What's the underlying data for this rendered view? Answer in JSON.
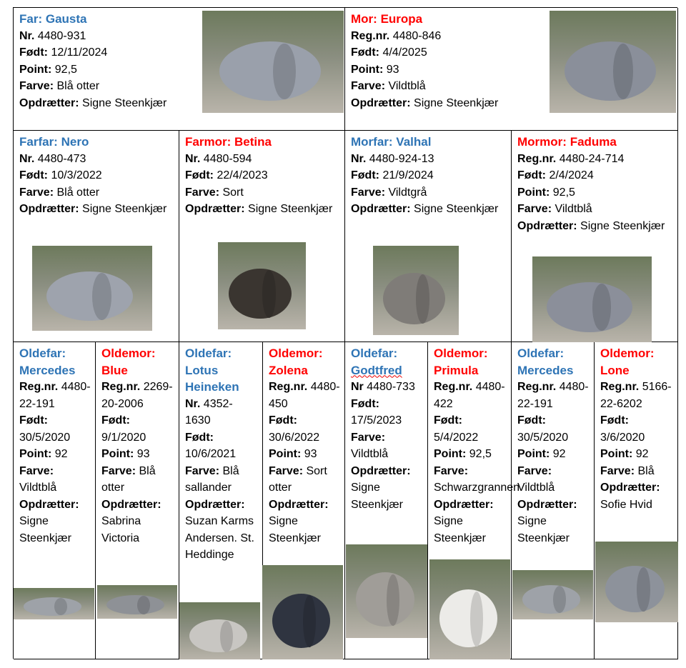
{
  "sire": {
    "role": "Far:",
    "name": "Gausta",
    "color": "#2e74b5",
    "fields": [
      {
        "label": "Nr.",
        "value": "4480-931"
      },
      {
        "label": "Født:",
        "value": "12/11/2024"
      },
      {
        "label": "Point:",
        "value": "92,5"
      },
      {
        "label": "Farve:",
        "value": "Blå otter"
      },
      {
        "label": "Opdrætter:",
        "value": "Signe Steenkjær"
      }
    ]
  },
  "dam": {
    "role": "Mor:",
    "name": "Europa",
    "color": "#ff0000",
    "fields": [
      {
        "label": "Reg.nr.",
        "value": "4480-846"
      },
      {
        "label": "Født:",
        "value": "4/4/2025"
      },
      {
        "label": "Point:",
        "value": "93"
      },
      {
        "label": "Farve:",
        "value": "Vildtblå"
      },
      {
        "label": "Opdrætter:",
        "value": "Signe Steenkjær"
      }
    ]
  },
  "grandparents": [
    {
      "role": "Farfar:",
      "name": "Nero",
      "color": "#2e74b5",
      "fields": [
        {
          "label": "Nr.",
          "value": "4480-473"
        },
        {
          "label": "Født:",
          "value": "10/3/2022"
        },
        {
          "label": "Farve:",
          "value": "Blå otter"
        },
        {
          "label": "Opdrætter:",
          "value": "Signe Steenkjær"
        }
      ]
    },
    {
      "role": "Farmor:",
      "name": "Betina",
      "color": "#ff0000",
      "fields": [
        {
          "label": "Nr.",
          "value": "4480-594"
        },
        {
          "label": "Født:",
          "value": "22/4/2023"
        },
        {
          "label": "Farve:",
          "value": "Sort"
        },
        {
          "label": "Opdrætter:",
          "value": "Signe Steenkjær"
        }
      ]
    },
    {
      "role": "Morfar:",
      "name": "Valhal",
      "color": "#2e74b5",
      "fields": [
        {
          "label": "Nr.",
          "value": "4480-924-13"
        },
        {
          "label": "Født:",
          "value": "21/9/2024"
        },
        {
          "label": "Farve:",
          "value": "Vildtgrå"
        },
        {
          "label": "Opdrætter:",
          "value": "Signe Steenkjær"
        }
      ]
    },
    {
      "role": "Mormor:",
      "name": "Faduma",
      "color": "#ff0000",
      "fields": [
        {
          "label": "Reg.nr.",
          "value": "4480-24-714"
        },
        {
          "label": "Født:",
          "value": "2/4/2024"
        },
        {
          "label": "Point:",
          "value": "92,5"
        },
        {
          "label": "Farve:",
          "value": "Vildtblå"
        },
        {
          "label": "Opdrætter:",
          "value": "Signe Steenkjær"
        }
      ]
    }
  ],
  "great_grandparents": [
    {
      "role": "Oldefar:",
      "name": "Mercedes",
      "color": "#2e74b5",
      "fields": [
        {
          "label": "Reg.nr.",
          "value": "4480-22-191"
        },
        {
          "label": "Født:",
          "value": "30/5/2020"
        },
        {
          "label": "Point:",
          "value": "92"
        },
        {
          "label": "Farve:",
          "value": "Vildtblå"
        },
        {
          "label": "Opdrætter:",
          "value": "Signe Steenkjær"
        }
      ]
    },
    {
      "role": "Oldemor:",
      "name": "Blue",
      "color": "#ff0000",
      "fields": [
        {
          "label": "Reg.nr.",
          "value": "2269-20-2006"
        },
        {
          "label": "Født:",
          "value": "9/1/2020"
        },
        {
          "label": "Point:",
          "value": "93"
        },
        {
          "label": "Farve:",
          "value": "Blå otter"
        },
        {
          "label": "Opdrætter:",
          "value": "Sabrina Victoria"
        }
      ]
    },
    {
      "role": "Oldefar:",
      "name": "Lotus Heineken",
      "color": "#2e74b5",
      "fields": [
        {
          "label": "Nr.",
          "value": "4352-1630"
        },
        {
          "label": "Født:",
          "value": "10/6/2021"
        },
        {
          "label": "Farve:",
          "value": "Blå sallander"
        },
        {
          "label": "Opdrætter:",
          "value": "Suzan Karms Andersen. St. Heddinge"
        }
      ]
    },
    {
      "role": "Oldemor:",
      "name": "Zolena",
      "color": "#ff0000",
      "fields": [
        {
          "label": "Reg.nr.",
          "value": "4480-450"
        },
        {
          "label": "Født:",
          "value": "30/6/2022"
        },
        {
          "label": "Point:",
          "value": "93"
        },
        {
          "label": "Farve:",
          "value": "Sort otter"
        },
        {
          "label": "Opdrætter:",
          "value": "Signe Steenkjær"
        }
      ]
    },
    {
      "role": "Oldefar:",
      "name": "Godtfred",
      "color": "#2e74b5",
      "fields": [
        {
          "label": "Nr",
          "value": "4480-733"
        },
        {
          "label": "Født:",
          "value": "17/5/2023"
        },
        {
          "label": "Farve:",
          "value": "Vildtblå"
        },
        {
          "label": "Opdrætter:",
          "value": "Signe Steenkjær"
        }
      ]
    },
    {
      "role": "Oldemor:",
      "name": "Primula",
      "color": "#ff0000",
      "fields": [
        {
          "label": "Reg.nr.",
          "value": "4480-422"
        },
        {
          "label": "Født:",
          "value": "5/4/2022"
        },
        {
          "label": "Point:",
          "value": "92,5"
        },
        {
          "label": "Farve:",
          "value": "Schwarzgrannen"
        },
        {
          "label": "Opdrætter:",
          "value": "Signe Steenkjær"
        }
      ]
    },
    {
      "role": "Oldefar:",
      "name": "Mercedes",
      "color": "#2e74b5",
      "fields": [
        {
          "label": "Reg.nr.",
          "value": "4480-22-191"
        },
        {
          "label": "Født:",
          "value": "30/5/2020"
        },
        {
          "label": "Point:",
          "value": "92"
        },
        {
          "label": "Farve:",
          "value": "Vildtblå"
        },
        {
          "label": "Opdrætter:",
          "value": "Signe Steenkjær"
        }
      ]
    },
    {
      "role": "Oldemor:",
      "name": "Lone",
      "color": "#ff0000",
      "fields": [
        {
          "label": "Reg.nr.",
          "value": "5166-22-6202"
        },
        {
          "label": "Født:",
          "value": "3/6/2020"
        },
        {
          "label": "Point:",
          "value": "92"
        },
        {
          "label": "Farve:",
          "value": "Blå"
        },
        {
          "label": "Opdrætter:",
          "value": "Sofie Hvid"
        }
      ]
    }
  ]
}
